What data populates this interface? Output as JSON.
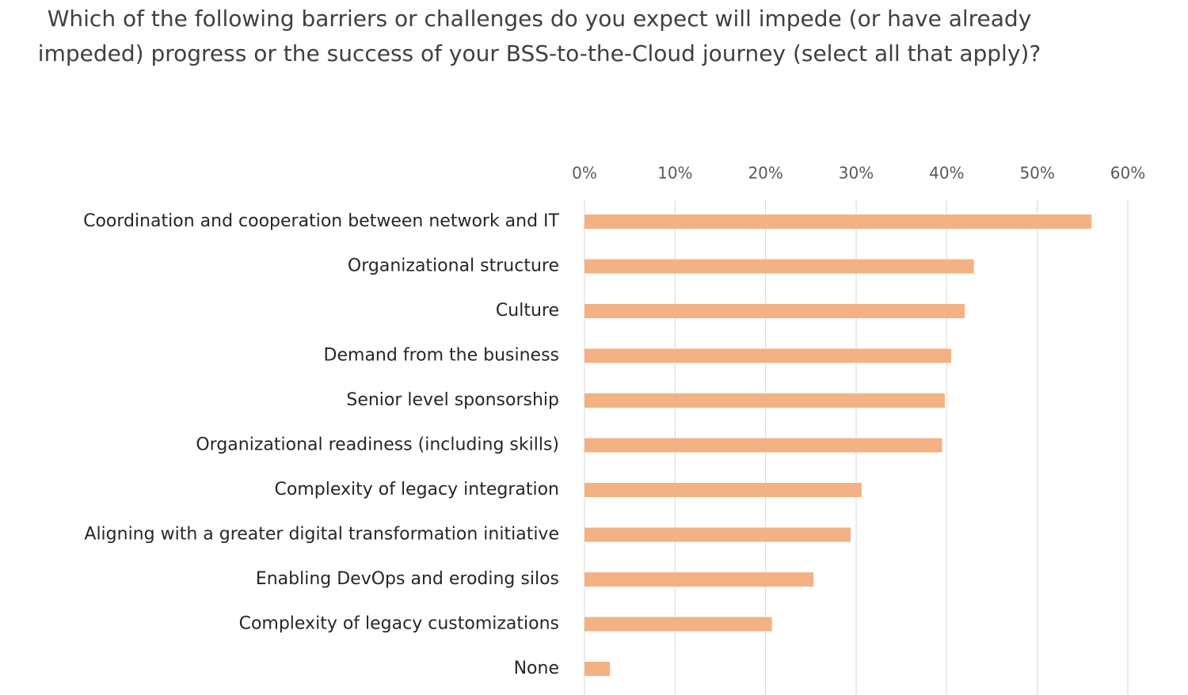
{
  "chart_data": {
    "type": "hbar",
    "title": "Which of the following barriers or challenges do you expect will impede (or have already impeded) progress or the success of your BSS-to-the-Cloud journey (select all that apply)?",
    "categories": [
      "Coordination and cooperation between network and IT",
      "Organizational structure",
      "Culture",
      "Demand from the business",
      "Senior level sponsorship",
      "Organizational readiness (including skills)",
      "Complexity of legacy integration",
      "Aligning with a greater digital transformation initiative",
      "Enabling DevOps and eroding silos",
      "Complexity of legacy customizations",
      "None"
    ],
    "values": [
      56.0,
      43.0,
      42.0,
      40.5,
      39.8,
      39.5,
      30.6,
      29.4,
      25.3,
      20.7,
      2.8
    ],
    "color": "#f4b183",
    "xlim": [
      0,
      60
    ],
    "xticks": [
      {
        "value": 0,
        "label": "0%"
      },
      {
        "value": 10,
        "label": "10%"
      },
      {
        "value": 20,
        "label": "20%"
      },
      {
        "value": 30,
        "label": "30%"
      },
      {
        "value": 40,
        "label": "40%"
      },
      {
        "value": 50,
        "label": "50%"
      },
      {
        "value": 60,
        "label": "60%"
      }
    ],
    "grid": true
  }
}
